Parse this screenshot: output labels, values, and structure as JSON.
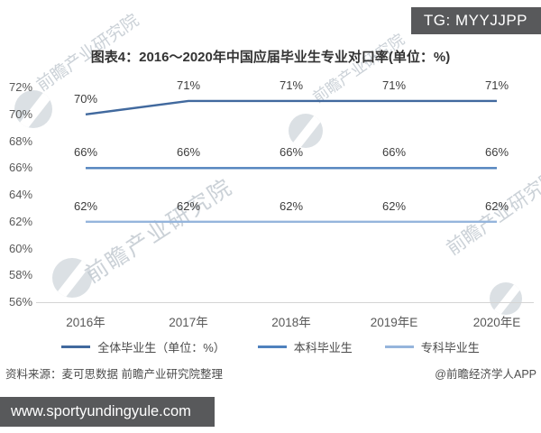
{
  "badge": {
    "text": "TG: MYYJJPP",
    "bg": "#58595b"
  },
  "chart_data": {
    "type": "line",
    "title": "图表4：2016～2020年中国应届毕业生专业对口率(单位：%)",
    "categories": [
      "2016年",
      "2017年",
      "2018年",
      "2019年E",
      "2020年E"
    ],
    "series": [
      {
        "name": "全体毕业生（单位：%）",
        "values": [
          70,
          71,
          71,
          71,
          71
        ],
        "color": "#41699e"
      },
      {
        "name": "本科毕业生",
        "values": [
          66,
          66,
          66,
          66,
          66
        ],
        "color": "#4f81bd"
      },
      {
        "name": "专科毕业生",
        "values": [
          62,
          62,
          62,
          62,
          62
        ],
        "color": "#95b5dc"
      }
    ],
    "ylim": [
      56,
      72
    ],
    "yticks": [
      "72%",
      "70%",
      "68%",
      "66%",
      "64%",
      "62%",
      "60%",
      "58%",
      "56%"
    ],
    "data_label_format": "{value}%",
    "grid": false,
    "legend_position": "bottom",
    "axis_color": "#d4d4d4"
  },
  "watermark": {
    "text": "前瞻产业研究院"
  },
  "source": {
    "left": "资料来源：麦可思数据 前瞻产业研究院整理",
    "right": "@前瞻经济学人APP"
  },
  "footer_bar": {
    "text": "www.sportyundingyule.com",
    "bg": "#58595b"
  }
}
